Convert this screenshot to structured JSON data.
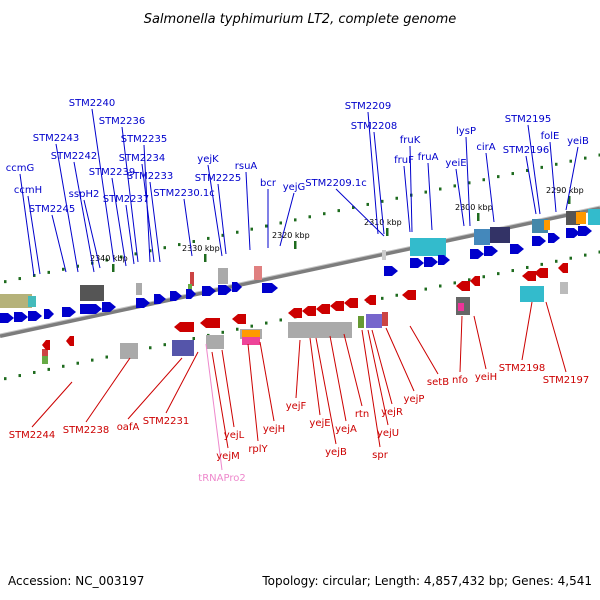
{
  "title": "Salmonella typhimurium LT2, complete genome",
  "footer": {
    "accession": "Accession: NC_003197",
    "topology": "Topology: circular; Length: 4,857,432 bp; Genes: 4,541"
  },
  "colors": {
    "forward": "#0000cc",
    "reverse": "#cc0000",
    "trna": "#ee88cc",
    "backbone": "#8c8c8c"
  },
  "kbp_ticks": [
    "2340 kbp",
    "2330 kbp",
    "2320 kbp",
    "2310 kbp",
    "2300 kbp",
    "2290 kbp"
  ],
  "forward_labels": [
    "STM2240",
    "STM2236",
    "STM2243",
    "STM2235",
    "STM2242",
    "STM2234",
    "ccmG",
    "STM2239",
    "sspH2",
    "STM2233",
    "ccmH",
    "STM2237",
    "STM2230.1c",
    "STM2245",
    "yejK",
    "STM2225",
    "rsuA",
    "bcr",
    "yejG",
    "STM2209.1c",
    "STM2209",
    "STM2208",
    "fruK",
    "fruF",
    "fruA",
    "lysP",
    "yeiE",
    "cirA",
    "STM2195",
    "STM2196",
    "folE",
    "yeiB"
  ],
  "reverse_labels": [
    "STM2244",
    "STM2238",
    "oafA",
    "STM2231",
    "yejL",
    "yejM",
    "rplY",
    "yejH",
    "yejF",
    "yejE",
    "yejB",
    "yejA",
    "rtn",
    "spr",
    "yejU",
    "yejR",
    "yejP",
    "setB",
    "nfo",
    "yeiH",
    "STM2198",
    "STM2197"
  ],
  "trna_labels": [
    "tRNAPro2"
  ]
}
